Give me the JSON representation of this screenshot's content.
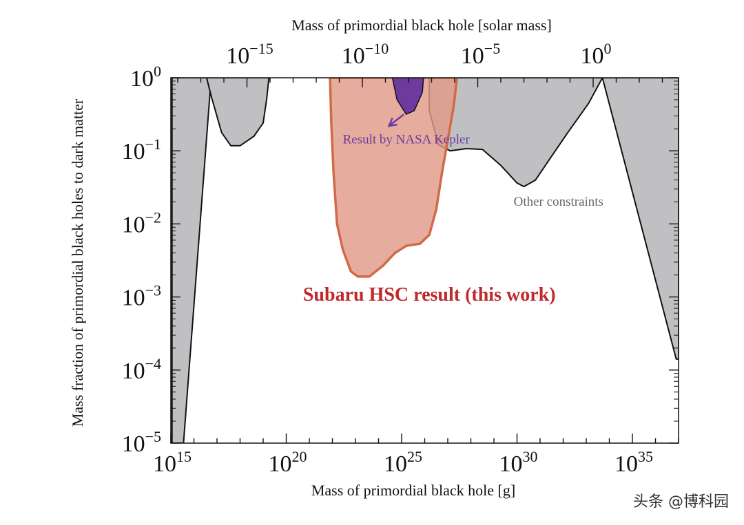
{
  "chart_data": {
    "type": "area",
    "x_scale": "log",
    "y_scale": "log",
    "xlabel": "Mass of primordial black hole [g]",
    "ylabel": "Mass fraction of primordial black holes to dark matter",
    "x2label": "Mass of primordial black hole [solar mass]",
    "xlim_exp": [
      15,
      37
    ],
    "ylim_exp": [
      -5,
      0
    ],
    "x_ticks": [
      {
        "base": "10",
        "exp": "15",
        "value": 15
      },
      {
        "base": "10",
        "exp": "20",
        "value": 20
      },
      {
        "base": "10",
        "exp": "25",
        "value": 25
      },
      {
        "base": "10",
        "exp": "30",
        "value": 30
      },
      {
        "base": "10",
        "exp": "35",
        "value": 35
      }
    ],
    "x2_ticks": [
      {
        "base": "10",
        "exp": "−15",
        "value": -15
      },
      {
        "base": "10",
        "exp": "−10",
        "value": -10
      },
      {
        "base": "10",
        "exp": "−5",
        "value": -5
      },
      {
        "base": "10",
        "exp": "0",
        "value": 0
      }
    ],
    "y_ticks": [
      {
        "base": "10",
        "exp": "0",
        "value": 0
      },
      {
        "base": "10",
        "exp": "−1",
        "value": -1
      },
      {
        "base": "10",
        "exp": "−2",
        "value": -2
      },
      {
        "base": "10",
        "exp": "−3",
        "value": -3
      },
      {
        "base": "10",
        "exp": "−4",
        "value": -4
      },
      {
        "base": "10",
        "exp": "−5",
        "value": -5
      }
    ],
    "series": [
      {
        "key": "other_left",
        "color": "#c0c0c2",
        "points": [
          [
            15.05,
            -5.0
          ],
          [
            15.55,
            -5.0
          ],
          [
            16.7,
            -0.2
          ],
          [
            16.7,
            0.0
          ],
          [
            15.05,
            0.0
          ]
        ]
      },
      {
        "key": "other_second",
        "color": "#c0c0c2",
        "points": [
          [
            16.55,
            0.0
          ],
          [
            16.75,
            -0.25
          ],
          [
            17.2,
            -0.75
          ],
          [
            17.6,
            -0.93
          ],
          [
            18.0,
            -0.93
          ],
          [
            18.6,
            -0.8
          ],
          [
            19.0,
            -0.62
          ],
          [
            19.15,
            -0.3
          ],
          [
            19.25,
            0.0
          ]
        ]
      },
      {
        "key": "other_right",
        "color": "#c0c0c2",
        "points": [
          [
            26.2,
            0.0
          ],
          [
            26.2,
            -0.45
          ],
          [
            26.6,
            -0.92
          ],
          [
            27.1,
            -1.0
          ],
          [
            27.8,
            -0.97
          ],
          [
            28.5,
            -0.98
          ],
          [
            29.3,
            -1.2
          ],
          [
            30.0,
            -1.44
          ],
          [
            30.3,
            -1.49
          ],
          [
            30.8,
            -1.4
          ],
          [
            31.4,
            -1.12
          ],
          [
            32.2,
            -0.75
          ],
          [
            33.1,
            -0.35
          ],
          [
            33.7,
            0.0
          ],
          [
            36.9,
            -3.85
          ],
          [
            37.0,
            -3.85
          ],
          [
            37.0,
            0.0
          ]
        ]
      },
      {
        "key": "subaru_hsc",
        "name": "Subaru HSC result (this work)",
        "color": "#e09a89",
        "stroke": "#d06a47",
        "points": [
          [
            21.9,
            0.0
          ],
          [
            21.95,
            -0.6
          ],
          [
            22.05,
            -1.3
          ],
          [
            22.2,
            -2.0
          ],
          [
            22.45,
            -2.35
          ],
          [
            22.8,
            -2.65
          ],
          [
            23.1,
            -2.72
          ],
          [
            23.6,
            -2.72
          ],
          [
            24.2,
            -2.57
          ],
          [
            24.7,
            -2.4
          ],
          [
            25.2,
            -2.3
          ],
          [
            25.8,
            -2.27
          ],
          [
            26.2,
            -2.15
          ],
          [
            26.5,
            -1.8
          ],
          [
            26.75,
            -1.3
          ],
          [
            27.0,
            -0.85
          ],
          [
            27.25,
            -0.4
          ],
          [
            27.4,
            0.0
          ]
        ]
      },
      {
        "key": "nasa_kepler",
        "name": "Result by NASA Kepler",
        "color": "#6e3a9e",
        "points": [
          [
            24.6,
            0.0
          ],
          [
            24.8,
            -0.3
          ],
          [
            25.2,
            -0.5
          ],
          [
            25.55,
            -0.45
          ],
          [
            25.9,
            -0.2
          ],
          [
            25.95,
            0.0
          ]
        ]
      }
    ],
    "annotations": [
      {
        "text": "Result by NASA Kepler",
        "x": 25.2,
        "y": -0.9,
        "color": "#6e3a9e"
      },
      {
        "text": "Other constraints",
        "x": 31.8,
        "y": -1.75,
        "color": "#666666"
      },
      {
        "text": "Subaru HSC result (this work)",
        "x": 26.2,
        "y": -3.05,
        "color": "#c0282a"
      }
    ],
    "kepler_arrow": {
      "from": [
        25.1,
        -0.5
      ],
      "to": [
        24.45,
        -0.66
      ],
      "color": "#6e3a9e"
    }
  },
  "watermark": "头条 @博科园"
}
